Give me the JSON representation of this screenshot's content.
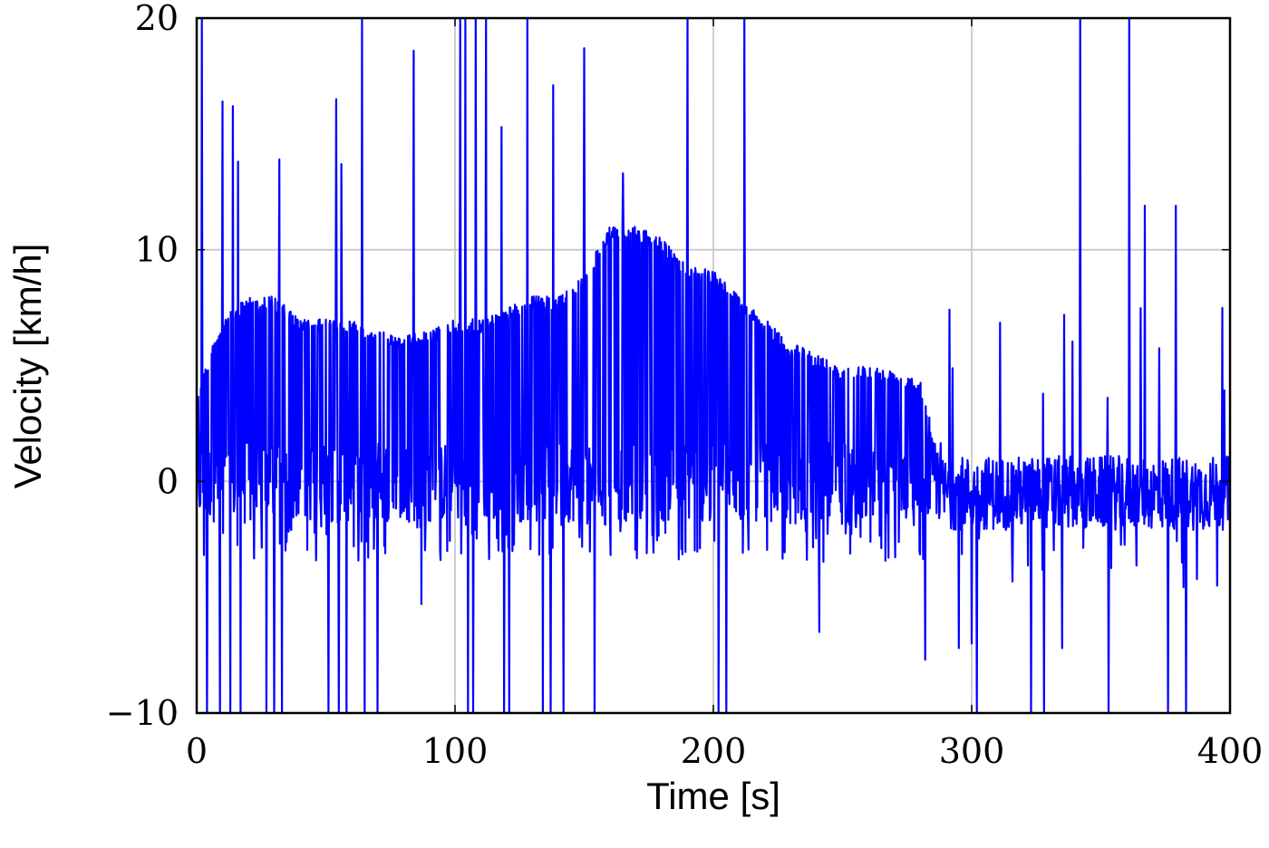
{
  "chart_data": {
    "type": "line",
    "title": "",
    "xlabel": "Time [s]",
    "ylabel": "Velocity [km/h]",
    "xlim": [
      0,
      400
    ],
    "ylim": [
      -10,
      20
    ],
    "x_ticks": [
      "0",
      "100",
      "200",
      "300",
      "400"
    ],
    "y_ticks": [
      "−10",
      "0",
      "10",
      "20"
    ],
    "grid": true,
    "legend": "none",
    "series_color": "#0000ff",
    "sample_interval_s": 0.2,
    "envelope_x": [
      0,
      10,
      20,
      30,
      40,
      50,
      60,
      70,
      80,
      90,
      100,
      110,
      120,
      130,
      140,
      150,
      160,
      170,
      180,
      190,
      200,
      210,
      220,
      230,
      240,
      250,
      260,
      270,
      280,
      290,
      300,
      310,
      320,
      330,
      340,
      350,
      360,
      370,
      380,
      390,
      400
    ],
    "envelope_level_kmh": [
      4,
      7,
      8,
      8,
      7,
      7,
      7,
      6.5,
      6.3,
      6.5,
      7,
      7,
      7.5,
      8,
      8,
      9,
      11,
      11,
      10.5,
      9.3,
      9.2,
      8,
      7,
      6,
      5.5,
      5,
      5,
      4.8,
      4.5,
      0,
      0,
      0,
      0,
      0,
      0,
      0,
      0,
      0,
      0,
      0,
      0
    ],
    "spikes": [
      {
        "t": 2,
        "v": 20
      },
      {
        "t": 10,
        "v": 16.4
      },
      {
        "t": 14,
        "v": 16.2
      },
      {
        "t": 16,
        "v": 13.8
      },
      {
        "t": 32,
        "v": 13.9
      },
      {
        "t": 54,
        "v": 16.5
      },
      {
        "t": 56,
        "v": 13.7
      },
      {
        "t": 64,
        "v": 20
      },
      {
        "t": 65,
        "v": 18.8
      },
      {
        "t": 84,
        "v": 18.6
      },
      {
        "t": 102,
        "v": 20
      },
      {
        "t": 104,
        "v": 20
      },
      {
        "t": 108,
        "v": 20
      },
      {
        "t": 112,
        "v": 20
      },
      {
        "t": 118,
        "v": 15.3
      },
      {
        "t": 121,
        "v": 20
      },
      {
        "t": 128,
        "v": 20
      },
      {
        "t": 138,
        "v": 17.1
      },
      {
        "t": 150,
        "v": 18.7
      },
      {
        "t": 165,
        "v": 13.3
      },
      {
        "t": 190,
        "v": 20
      },
      {
        "t": 212,
        "v": 20
      },
      {
        "t": 342,
        "v": 20
      },
      {
        "t": 361,
        "v": 20
      },
      {
        "t": 367,
        "v": 11.9
      },
      {
        "t": 379,
        "v": 11.9
      },
      {
        "t": 4,
        "v": -10
      },
      {
        "t": 9,
        "v": -10
      },
      {
        "t": 13,
        "v": -10
      },
      {
        "t": 17,
        "v": -10
      },
      {
        "t": 27,
        "v": -10
      },
      {
        "t": 30,
        "v": -10
      },
      {
        "t": 33,
        "v": -10
      },
      {
        "t": 51,
        "v": -10
      },
      {
        "t": 55,
        "v": -10
      },
      {
        "t": 58,
        "v": -10
      },
      {
        "t": 65,
        "v": -10
      },
      {
        "t": 70,
        "v": -10
      },
      {
        "t": 87,
        "v": -10
      },
      {
        "t": 105,
        "v": -10
      },
      {
        "t": 107,
        "v": -10
      },
      {
        "t": 119,
        "v": -10
      },
      {
        "t": 121,
        "v": -10
      },
      {
        "t": 134,
        "v": -10
      },
      {
        "t": 137,
        "v": -10
      },
      {
        "t": 142,
        "v": -10
      },
      {
        "t": 154,
        "v": -10
      },
      {
        "t": 202,
        "v": -10
      },
      {
        "t": 205,
        "v": -10
      },
      {
        "t": 300,
        "v": -10
      },
      {
        "t": 302,
        "v": -10
      },
      {
        "t": 323,
        "v": -10
      },
      {
        "t": 328,
        "v": -10
      },
      {
        "t": 353,
        "v": -10
      },
      {
        "t": 376,
        "v": -10
      },
      {
        "t": 383,
        "v": -10
      },
      {
        "t": 87,
        "v": -5.3
      },
      {
        "t": 241,
        "v": -6.5
      },
      {
        "t": 282,
        "v": -7.7
      },
      {
        "t": 295,
        "v": -7.2
      },
      {
        "t": 300,
        "v": -7.0
      },
      {
        "t": 335,
        "v": -7.2
      },
      {
        "t": 395,
        "v": -4.5
      }
    ]
  }
}
